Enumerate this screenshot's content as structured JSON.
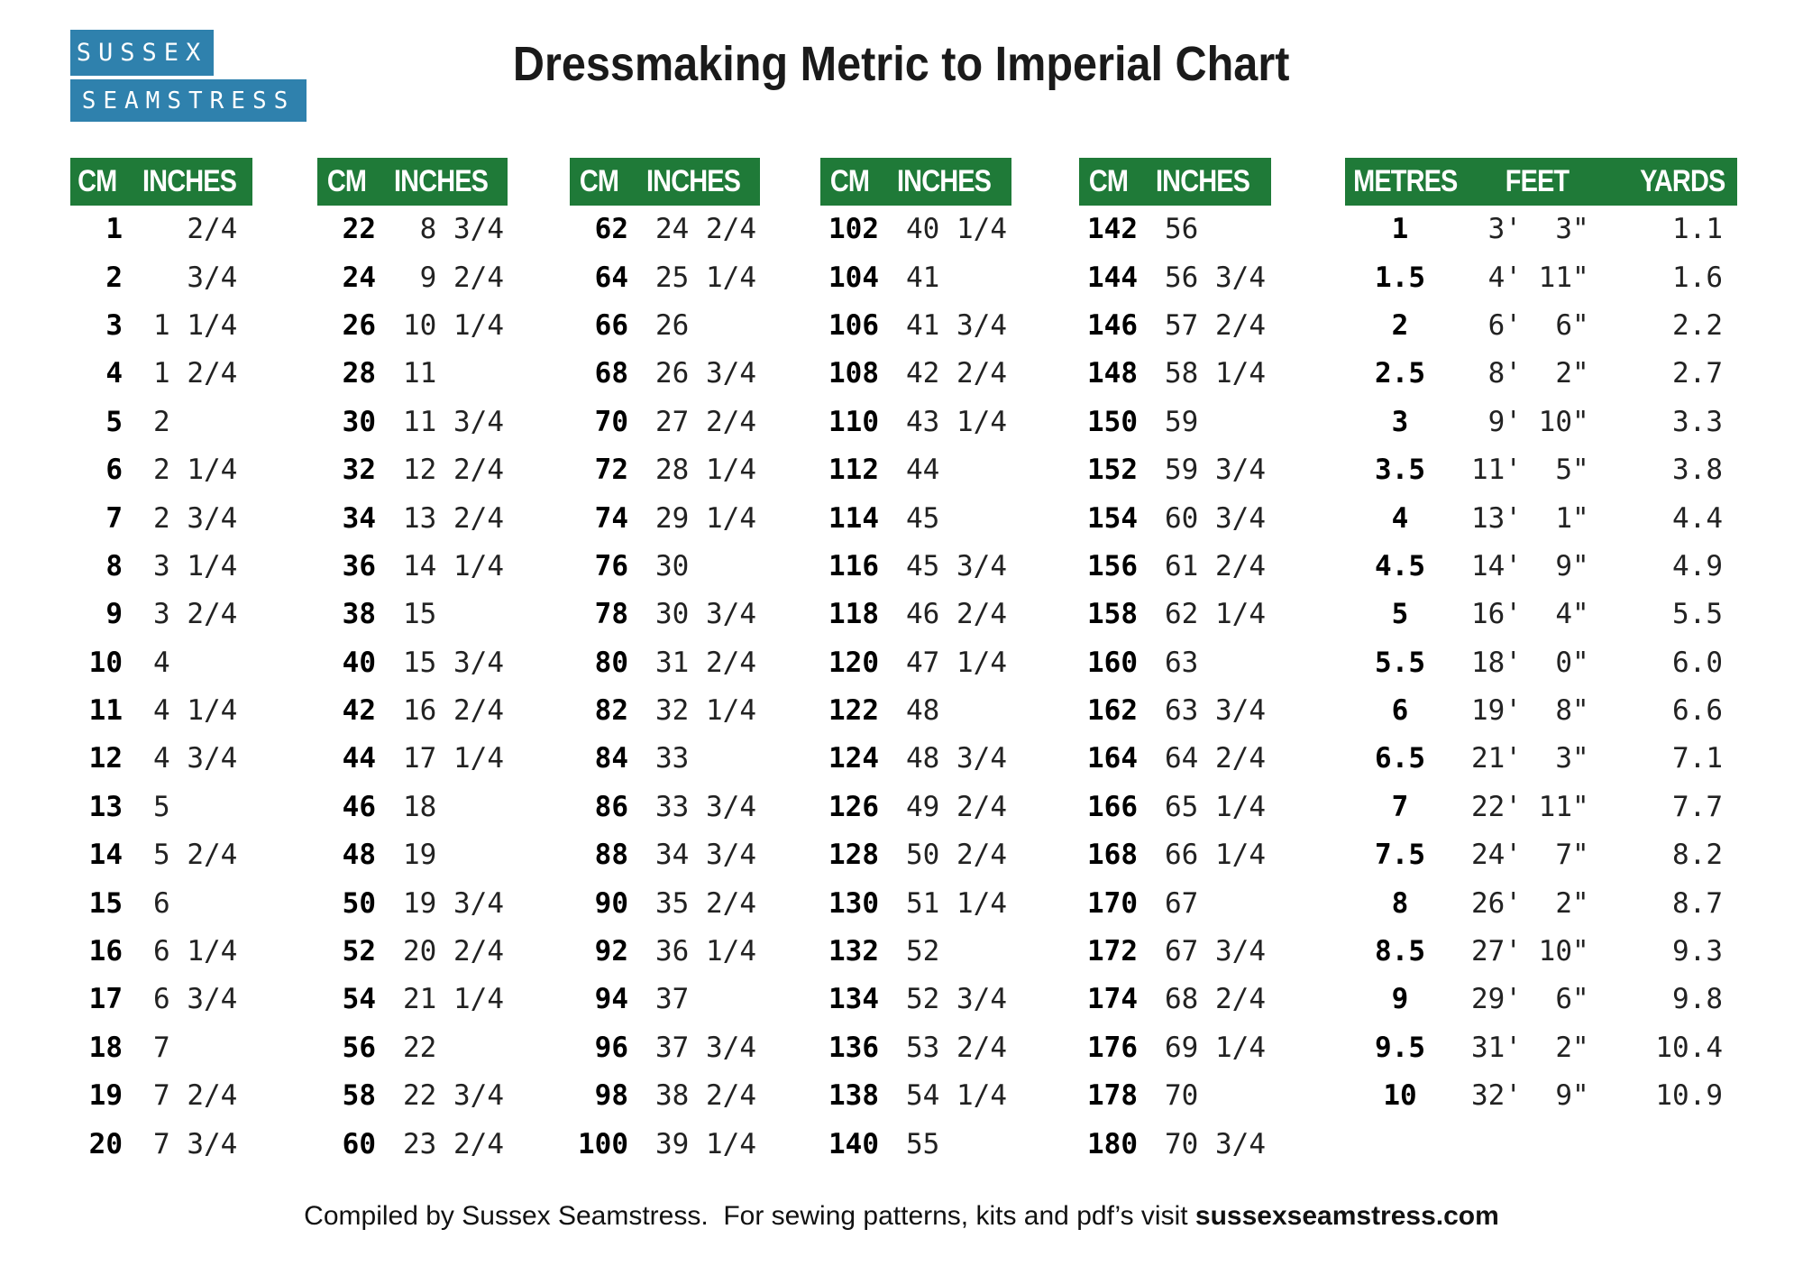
{
  "title": "Dressmaking Metric to Imperial Chart",
  "logo": {
    "line1": "SUSSEX",
    "line2": "SEAMSTRESS"
  },
  "colors": {
    "header_green": "#1f7a38",
    "logo_blue": "#2f81ad",
    "page_bg": "#ffffff",
    "text": "#111111"
  },
  "cm_tables": [
    {
      "headers": [
        "CM",
        "INCHES"
      ],
      "rows": [
        [
          "1",
          "  2/4"
        ],
        [
          "2",
          "  3/4"
        ],
        [
          "3",
          "1 1/4"
        ],
        [
          "4",
          "1 2/4"
        ],
        [
          "5",
          "2"
        ],
        [
          "6",
          "2 1/4"
        ],
        [
          "7",
          "2 3/4"
        ],
        [
          "8",
          "3 1/4"
        ],
        [
          "9",
          "3 2/4"
        ],
        [
          "10",
          "4"
        ],
        [
          "11",
          "4 1/4"
        ],
        [
          "12",
          "4 3/4"
        ],
        [
          "13",
          "5"
        ],
        [
          "14",
          "5 2/4"
        ],
        [
          "15",
          "6"
        ],
        [
          "16",
          "6 1/4"
        ],
        [
          "17",
          "6 3/4"
        ],
        [
          "18",
          "7"
        ],
        [
          "19",
          "7 2/4"
        ],
        [
          "20",
          "7 3/4"
        ]
      ]
    },
    {
      "headers": [
        "CM",
        "INCHES"
      ],
      "rows": [
        [
          "22",
          " 8 3/4"
        ],
        [
          "24",
          " 9 2/4"
        ],
        [
          "26",
          "10 1/4"
        ],
        [
          "28",
          "11"
        ],
        [
          "30",
          "11 3/4"
        ],
        [
          "32",
          "12 2/4"
        ],
        [
          "34",
          "13 2/4"
        ],
        [
          "36",
          "14 1/4"
        ],
        [
          "38",
          "15"
        ],
        [
          "40",
          "15 3/4"
        ],
        [
          "42",
          "16 2/4"
        ],
        [
          "44",
          "17 1/4"
        ],
        [
          "46",
          "18"
        ],
        [
          "48",
          "19"
        ],
        [
          "50",
          "19 3/4"
        ],
        [
          "52",
          "20 2/4"
        ],
        [
          "54",
          "21 1/4"
        ],
        [
          "56",
          "22"
        ],
        [
          "58",
          "22 3/4"
        ],
        [
          "60",
          "23 2/4"
        ]
      ]
    },
    {
      "headers": [
        "CM",
        "INCHES"
      ],
      "rows": [
        [
          "62",
          "24 2/4"
        ],
        [
          "64",
          "25 1/4"
        ],
        [
          "66",
          "26"
        ],
        [
          "68",
          "26 3/4"
        ],
        [
          "70",
          "27 2/4"
        ],
        [
          "72",
          "28 1/4"
        ],
        [
          "74",
          "29 1/4"
        ],
        [
          "76",
          "30"
        ],
        [
          "78",
          "30 3/4"
        ],
        [
          "80",
          "31 2/4"
        ],
        [
          "82",
          "32 1/4"
        ],
        [
          "84",
          "33"
        ],
        [
          "86",
          "33 3/4"
        ],
        [
          "88",
          "34 3/4"
        ],
        [
          "90",
          "35 2/4"
        ],
        [
          "92",
          "36 1/4"
        ],
        [
          "94",
          "37"
        ],
        [
          "96",
          "37 3/4"
        ],
        [
          "98",
          "38 2/4"
        ],
        [
          "100",
          "39 1/4"
        ]
      ]
    },
    {
      "headers": [
        "CM",
        "INCHES"
      ],
      "rows": [
        [
          "102",
          "40 1/4"
        ],
        [
          "104",
          "41"
        ],
        [
          "106",
          "41 3/4"
        ],
        [
          "108",
          "42 2/4"
        ],
        [
          "110",
          "43 1/4"
        ],
        [
          "112",
          "44"
        ],
        [
          "114",
          "45"
        ],
        [
          "116",
          "45 3/4"
        ],
        [
          "118",
          "46 2/4"
        ],
        [
          "120",
          "47 1/4"
        ],
        [
          "122",
          "48"
        ],
        [
          "124",
          "48 3/4"
        ],
        [
          "126",
          "49 2/4"
        ],
        [
          "128",
          "50 2/4"
        ],
        [
          "130",
          "51 1/4"
        ],
        [
          "132",
          "52"
        ],
        [
          "134",
          "52 3/4"
        ],
        [
          "136",
          "53 2/4"
        ],
        [
          "138",
          "54 1/4"
        ],
        [
          "140",
          "55"
        ]
      ]
    },
    {
      "headers": [
        "CM",
        "INCHES"
      ],
      "rows": [
        [
          "142",
          "56"
        ],
        [
          "144",
          "56 3/4"
        ],
        [
          "146",
          "57 2/4"
        ],
        [
          "148",
          "58 1/4"
        ],
        [
          "150",
          "59"
        ],
        [
          "152",
          "59 3/4"
        ],
        [
          "154",
          "60 3/4"
        ],
        [
          "156",
          "61 2/4"
        ],
        [
          "158",
          "62 1/4"
        ],
        [
          "160",
          "63"
        ],
        [
          "162",
          "63 3/4"
        ],
        [
          "164",
          "64 2/4"
        ],
        [
          "166",
          "65 1/4"
        ],
        [
          "168",
          "66 1/4"
        ],
        [
          "170",
          "67"
        ],
        [
          "172",
          "67 3/4"
        ],
        [
          "174",
          "68 2/4"
        ],
        [
          "176",
          "69 1/4"
        ],
        [
          "178",
          "70"
        ],
        [
          "180",
          "70 3/4"
        ]
      ]
    }
  ],
  "metres_table": {
    "headers": [
      "METRES",
      "FEET",
      "YARDS"
    ],
    "rows": [
      [
        "1",
        " 3'  3\"",
        "1.1"
      ],
      [
        "1.5",
        " 4' 11\"",
        "1.6"
      ],
      [
        "2",
        " 6'  6\"",
        "2.2"
      ],
      [
        "2.5",
        " 8'  2\"",
        "2.7"
      ],
      [
        "3",
        " 9' 10\"",
        "3.3"
      ],
      [
        "3.5",
        "11'  5\"",
        "3.8"
      ],
      [
        "4",
        "13'  1\"",
        "4.4"
      ],
      [
        "4.5",
        "14'  9\"",
        "4.9"
      ],
      [
        "5",
        "16'  4\"",
        "5.5"
      ],
      [
        "5.5",
        "18'  0\"",
        "6.0"
      ],
      [
        "6",
        "19'  8\"",
        "6.6"
      ],
      [
        "6.5",
        "21'  3\"",
        "7.1"
      ],
      [
        "7",
        "22' 11\"",
        "7.7"
      ],
      [
        "7.5",
        "24'  7\"",
        "8.2"
      ],
      [
        "8",
        "26'  2\"",
        "8.7"
      ],
      [
        "8.5",
        "27' 10\"",
        "9.3"
      ],
      [
        "9",
        "29'  6\"",
        "9.8"
      ],
      [
        "9.5",
        "31'  2\"",
        "10.4"
      ],
      [
        "10",
        "32'  9\"",
        "10.9"
      ]
    ]
  },
  "footer": {
    "text": "Compiled by Sussex Seamstress.  For sewing patterns, kits and pdf’s visit ",
    "link": "sussexseamstress.com"
  }
}
